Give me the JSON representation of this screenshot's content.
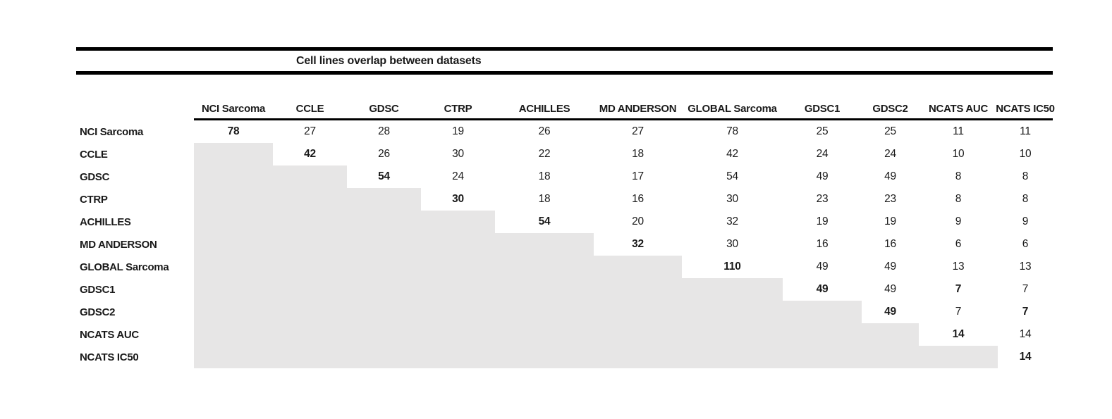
{
  "title": "Cell lines overlap between datasets",
  "shade_color": "#e7e6e6",
  "chart_data": {
    "type": "table",
    "title": "Cell lines overlap between datasets",
    "description_layout": "symmetric overlap matrix; only upper triangle shown, lower triangle shaded",
    "datasets": [
      "NCI Sarcoma",
      "CCLE",
      "GDSC",
      "CTRP",
      "ACHILLES",
      "MD ANDERSON",
      "GLOBAL Sarcoma",
      "GDSC1",
      "GDSC2",
      "NCATS AUC",
      "NCATS IC50"
    ],
    "rows": [
      {
        "label": "NCI Sarcoma",
        "values": [
          78,
          27,
          28,
          19,
          26,
          27,
          78,
          25,
          25,
          11,
          11
        ]
      },
      {
        "label": "CCLE",
        "values": [
          null,
          42,
          26,
          30,
          22,
          18,
          42,
          24,
          24,
          10,
          10
        ]
      },
      {
        "label": "GDSC",
        "values": [
          null,
          null,
          54,
          24,
          18,
          17,
          54,
          49,
          49,
          8,
          8
        ]
      },
      {
        "label": "CTRP",
        "values": [
          null,
          null,
          null,
          30,
          18,
          16,
          30,
          23,
          23,
          8,
          8
        ]
      },
      {
        "label": "ACHILLES",
        "values": [
          null,
          null,
          null,
          null,
          54,
          20,
          32,
          19,
          19,
          9,
          9
        ]
      },
      {
        "label": "MD ANDERSON",
        "values": [
          null,
          null,
          null,
          null,
          null,
          32,
          30,
          16,
          16,
          6,
          6
        ]
      },
      {
        "label": "GLOBAL Sarcoma",
        "values": [
          null,
          null,
          null,
          null,
          null,
          null,
          110,
          49,
          49,
          13,
          13
        ]
      },
      {
        "label": "GDSC1",
        "values": [
          null,
          null,
          null,
          null,
          null,
          null,
          null,
          49,
          49,
          7,
          7
        ]
      },
      {
        "label": "GDSC2",
        "values": [
          null,
          null,
          null,
          null,
          null,
          null,
          null,
          null,
          49,
          7,
          7
        ]
      },
      {
        "label": "NCATS AUC",
        "values": [
          null,
          null,
          null,
          null,
          null,
          null,
          null,
          null,
          null,
          14,
          14
        ]
      },
      {
        "label": "NCATS IC50",
        "values": [
          null,
          null,
          null,
          null,
          null,
          null,
          null,
          null,
          null,
          null,
          14
        ]
      }
    ],
    "bold_diagonal": true,
    "extra_bold_cells": [
      [
        7,
        9
      ],
      [
        8,
        10
      ]
    ],
    "shaded_lower_triangle": true
  }
}
